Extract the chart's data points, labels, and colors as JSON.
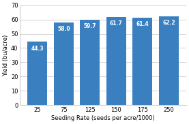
{
  "categories": [
    "25",
    "75",
    "125",
    "150",
    "175",
    "250"
  ],
  "values": [
    44.3,
    58.0,
    59.7,
    61.7,
    61.4,
    62.2
  ],
  "bar_color": "#3a80c0",
  "title": "",
  "xlabel": "Seeding Rate (seeds per acre/1000)",
  "ylabel": "Yield (bu/acre)",
  "ylim": [
    0,
    70
  ],
  "yticks": [
    0,
    10,
    20,
    30,
    40,
    50,
    60,
    70
  ],
  "label_color": "white",
  "label_fontsize": 5.5,
  "axis_fontsize": 6.0,
  "tick_fontsize": 6.0,
  "background_color": "#ffffff",
  "grid_color": "#cccccc",
  "bar_width": 0.75
}
